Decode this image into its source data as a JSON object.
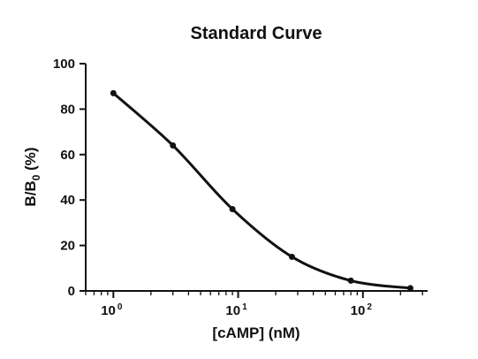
{
  "chart_data": {
    "type": "scatter",
    "title": "Standard Curve",
    "xlabel": "[cAMP] (nM)",
    "ylabel_main": "B/B",
    "ylabel_sub": "0",
    "ylabel_unit": " (%)",
    "xscale": "log",
    "xlim": [
      0.6,
      330
    ],
    "ylim": [
      0,
      100
    ],
    "x_ticks": [
      {
        "base": "10",
        "exp": "0",
        "value": 1
      },
      {
        "base": "10",
        "exp": "1",
        "value": 10
      },
      {
        "base": "10",
        "exp": "2",
        "value": 100
      }
    ],
    "y_ticks": [
      0,
      20,
      40,
      60,
      80,
      100
    ],
    "grid": false,
    "legend": "none",
    "series": [
      {
        "x": [
          1,
          3,
          9,
          27,
          80,
          240
        ],
        "y": [
          87,
          64,
          36,
          15,
          4.5,
          1.2
        ]
      }
    ],
    "fit_curve": true,
    "color": "#111111"
  }
}
